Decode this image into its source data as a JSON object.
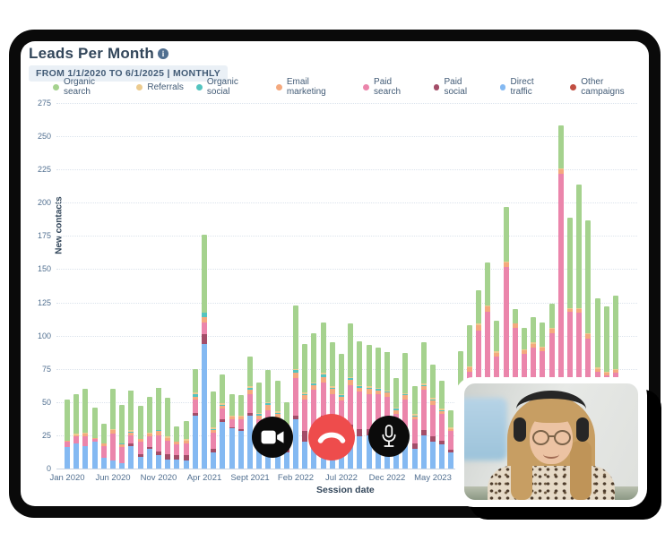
{
  "header": {
    "title": "Leads Per Month",
    "range_badge": "FROM 1/1/2020 TO 6/1/2025 | MONTHLY"
  },
  "legend": [
    {
      "label": "Organic search",
      "color": "#a5d28e"
    },
    {
      "label": "Referrals",
      "color": "#eccb8f"
    },
    {
      "label": "Organic social",
      "color": "#54c4bf"
    },
    {
      "label": "Email marketing",
      "color": "#f4a97e"
    },
    {
      "label": "Paid search",
      "color": "#eb85ab"
    },
    {
      "label": "Paid social",
      "color": "#a34d68"
    },
    {
      "label": "Direct traffic",
      "color": "#84b9f2"
    },
    {
      "label": "Other campaigns",
      "color": "#c14e42"
    }
  ],
  "chart_data": {
    "type": "bar",
    "stacked": true,
    "title": "Leads Per Month",
    "xlabel": "Session date",
    "ylabel": "New contacts",
    "ylim": [
      0,
      275
    ],
    "yticks": [
      0,
      25,
      50,
      75,
      100,
      125,
      150,
      175,
      200,
      225,
      250,
      275
    ],
    "grid": "dotted-horizontal",
    "x_tick_labels": [
      "Jan 2020",
      "Jun 2020",
      "Nov 2020",
      "Apr 2021",
      "Sept 2021",
      "Feb 2022",
      "Jul 2022",
      "Dec 2022",
      "May 2023"
    ],
    "x_tick_indices": [
      0,
      5,
      10,
      15,
      20,
      25,
      30,
      35,
      40
    ],
    "categories": [
      "Jan 2020",
      "Feb 2020",
      "Mar 2020",
      "Apr 2020",
      "May 2020",
      "Jun 2020",
      "Jul 2020",
      "Aug 2020",
      "Sep 2020",
      "Oct 2020",
      "Nov 2020",
      "Dec 2020",
      "Jan 2021",
      "Feb 2021",
      "Mar 2021",
      "Apr 2021",
      "May 2021",
      "Jun 2021",
      "Jul 2021",
      "Aug 2021",
      "Sep 2021",
      "Oct 2021",
      "Nov 2021",
      "Dec 2021",
      "Jan 2022",
      "Feb 2022",
      "Mar 2022",
      "Apr 2022",
      "May 2022",
      "Jun 2022",
      "Jul 2022",
      "Aug 2022",
      "Sep 2022",
      "Oct 2022",
      "Nov 2022",
      "Dec 2022",
      "Jan 2023",
      "Feb 2023",
      "Mar 2023",
      "Apr 2023",
      "May 2023",
      "Jun 2023",
      "Jul 2023",
      "Aug 2023",
      "Sep 2023",
      "Oct 2023",
      "Nov 2023",
      "Dec 2023",
      "Jan 2024",
      "Feb 2024",
      "Mar 2024",
      "Apr 2024",
      "May 2024",
      "Jun 2024",
      "Jul 2024",
      "Aug 2024",
      "Sep 2024",
      "Oct 2024",
      "Nov 2024",
      "Dec 2024",
      "Jan 2025"
    ],
    "series": [
      {
        "name": "Organic search",
        "color": "#a5d28e",
        "values": [
          31,
          30,
          33,
          23,
          15,
          30,
          29,
          30,
          25,
          27,
          32,
          29,
          12,
          14,
          18,
          59,
          27,
          22,
          16,
          15,
          22,
          23,
          24,
          23,
          16,
          48,
          37,
          37,
          38,
          33,
          30,
          40,
          33,
          31,
          30,
          29,
          22,
          30,
          21,
          31,
          25,
          21,
          13,
          25,
          31,
          25,
          32,
          23,
          41,
          11,
          16,
          19,
          18,
          18,
          32,
          68,
          93,
          85,
          52,
          49,
          55
        ]
      },
      {
        "name": "Referrals",
        "color": "#eccb8f",
        "values": [
          0,
          1,
          1,
          0,
          0,
          1,
          0,
          1,
          0,
          1,
          0,
          1,
          0,
          1,
          1,
          0,
          1,
          1,
          1,
          1,
          1,
          1,
          1,
          1,
          1,
          1,
          1,
          1,
          1,
          1,
          1,
          1,
          1,
          1,
          1,
          1,
          1,
          1,
          1,
          1,
          1,
          1,
          1,
          1,
          1,
          1,
          1,
          1,
          1,
          0,
          1,
          1,
          1,
          1,
          1,
          1,
          1,
          1,
          1,
          1,
          1
        ]
      },
      {
        "name": "Organic social",
        "color": "#54c4bf",
        "values": [
          0,
          0,
          0,
          0,
          0,
          0,
          1,
          1,
          0,
          0,
          1,
          0,
          0,
          0,
          2,
          3,
          1,
          1,
          0,
          0,
          2,
          1,
          1,
          1,
          1,
          2,
          1,
          1,
          2,
          1,
          1,
          1,
          1,
          1,
          1,
          1,
          1,
          1,
          1,
          1,
          1,
          1,
          0,
          0,
          0,
          0,
          0,
          0,
          0,
          0,
          0,
          0,
          0,
          0,
          0,
          0,
          0,
          0,
          0,
          0,
          0
        ]
      },
      {
        "name": "Email marketing",
        "color": "#f4a97e",
        "values": [
          1,
          1,
          2,
          1,
          2,
          3,
          2,
          2,
          2,
          2,
          3,
          2,
          2,
          2,
          2,
          4,
          2,
          2,
          2,
          2,
          3,
          3,
          4,
          3,
          2,
          4,
          3,
          4,
          4,
          4,
          3,
          4,
          3,
          4,
          3,
          3,
          3,
          3,
          2,
          3,
          3,
          2,
          2,
          3,
          3,
          4,
          4,
          3,
          3,
          3,
          3,
          3,
          3,
          3,
          3,
          2,
          3,
          3,
          2,
          2,
          2
        ]
      },
      {
        "name": "Paid search",
        "color": "#eb85ab",
        "values": [
          4,
          5,
          7,
          2,
          9,
          20,
          12,
          6,
          9,
          8,
          12,
          10,
          8,
          9,
          10,
          9,
          12,
          8,
          6,
          7,
          14,
          16,
          22,
          20,
          12,
          28,
          24,
          28,
          25,
          28,
          22,
          30,
          28,
          26,
          28,
          24,
          20,
          26,
          18,
          30,
          24,
          20,
          14,
          38,
          50,
          80,
          92,
          62,
          126,
          86,
          68,
          72,
          70,
          82,
          198,
          98,
          95,
          78,
          57,
          54,
          56
        ]
      },
      {
        "name": "Paid social",
        "color": "#a34d68",
        "values": [
          0,
          0,
          0,
          0,
          0,
          0,
          0,
          2,
          2,
          1,
          3,
          4,
          3,
          4,
          2,
          7,
          3,
          2,
          1,
          2,
          2,
          3,
          2,
          5,
          6,
          3,
          8,
          6,
          5,
          6,
          4,
          5,
          6,
          5,
          6,
          4,
          5,
          4,
          4,
          4,
          4,
          3,
          2,
          3,
          3,
          2,
          2,
          2,
          2,
          2,
          2,
          2,
          2,
          2,
          2,
          2,
          2,
          2,
          2,
          2,
          2
        ]
      },
      {
        "name": "Direct traffic",
        "color": "#84b9f2",
        "values": [
          16,
          19,
          17,
          20,
          8,
          6,
          4,
          17,
          9,
          15,
          10,
          7,
          7,
          6,
          40,
          94,
          12,
          35,
          30,
          28,
          40,
          18,
          20,
          13,
          12,
          37,
          20,
          25,
          35,
          22,
          25,
          28,
          24,
          25,
          22,
          26,
          16,
          22,
          15,
          25,
          20,
          18,
          12,
          18,
          20,
          22,
          24,
          20,
          24,
          18,
          16,
          17,
          16,
          18,
          22,
          18,
          20,
          18,
          14,
          14,
          14
        ]
      },
      {
        "name": "Other campaigns",
        "color": "#c14e42",
        "values": [
          0,
          0,
          0,
          0,
          0,
          0,
          0,
          0,
          0,
          0,
          0,
          0,
          0,
          0,
          0,
          0,
          0,
          0,
          0,
          0,
          0,
          0,
          0,
          0,
          0,
          0,
          0,
          0,
          0,
          0,
          0,
          0,
          0,
          0,
          0,
          0,
          0,
          0,
          0,
          0,
          0,
          0,
          0,
          0,
          0,
          0,
          0,
          0,
          0,
          0,
          0,
          0,
          0,
          0,
          0,
          0,
          0,
          0,
          0,
          0,
          0
        ]
      }
    ]
  },
  "call_controls": {
    "camera": {
      "icon": "video-camera-icon",
      "bg": "#0b0b0b"
    },
    "hangup": {
      "icon": "hangup-phone-icon",
      "bg": "#ee4c4c"
    },
    "mic": {
      "icon": "microphone-icon",
      "bg": "#0b0b0b"
    }
  }
}
